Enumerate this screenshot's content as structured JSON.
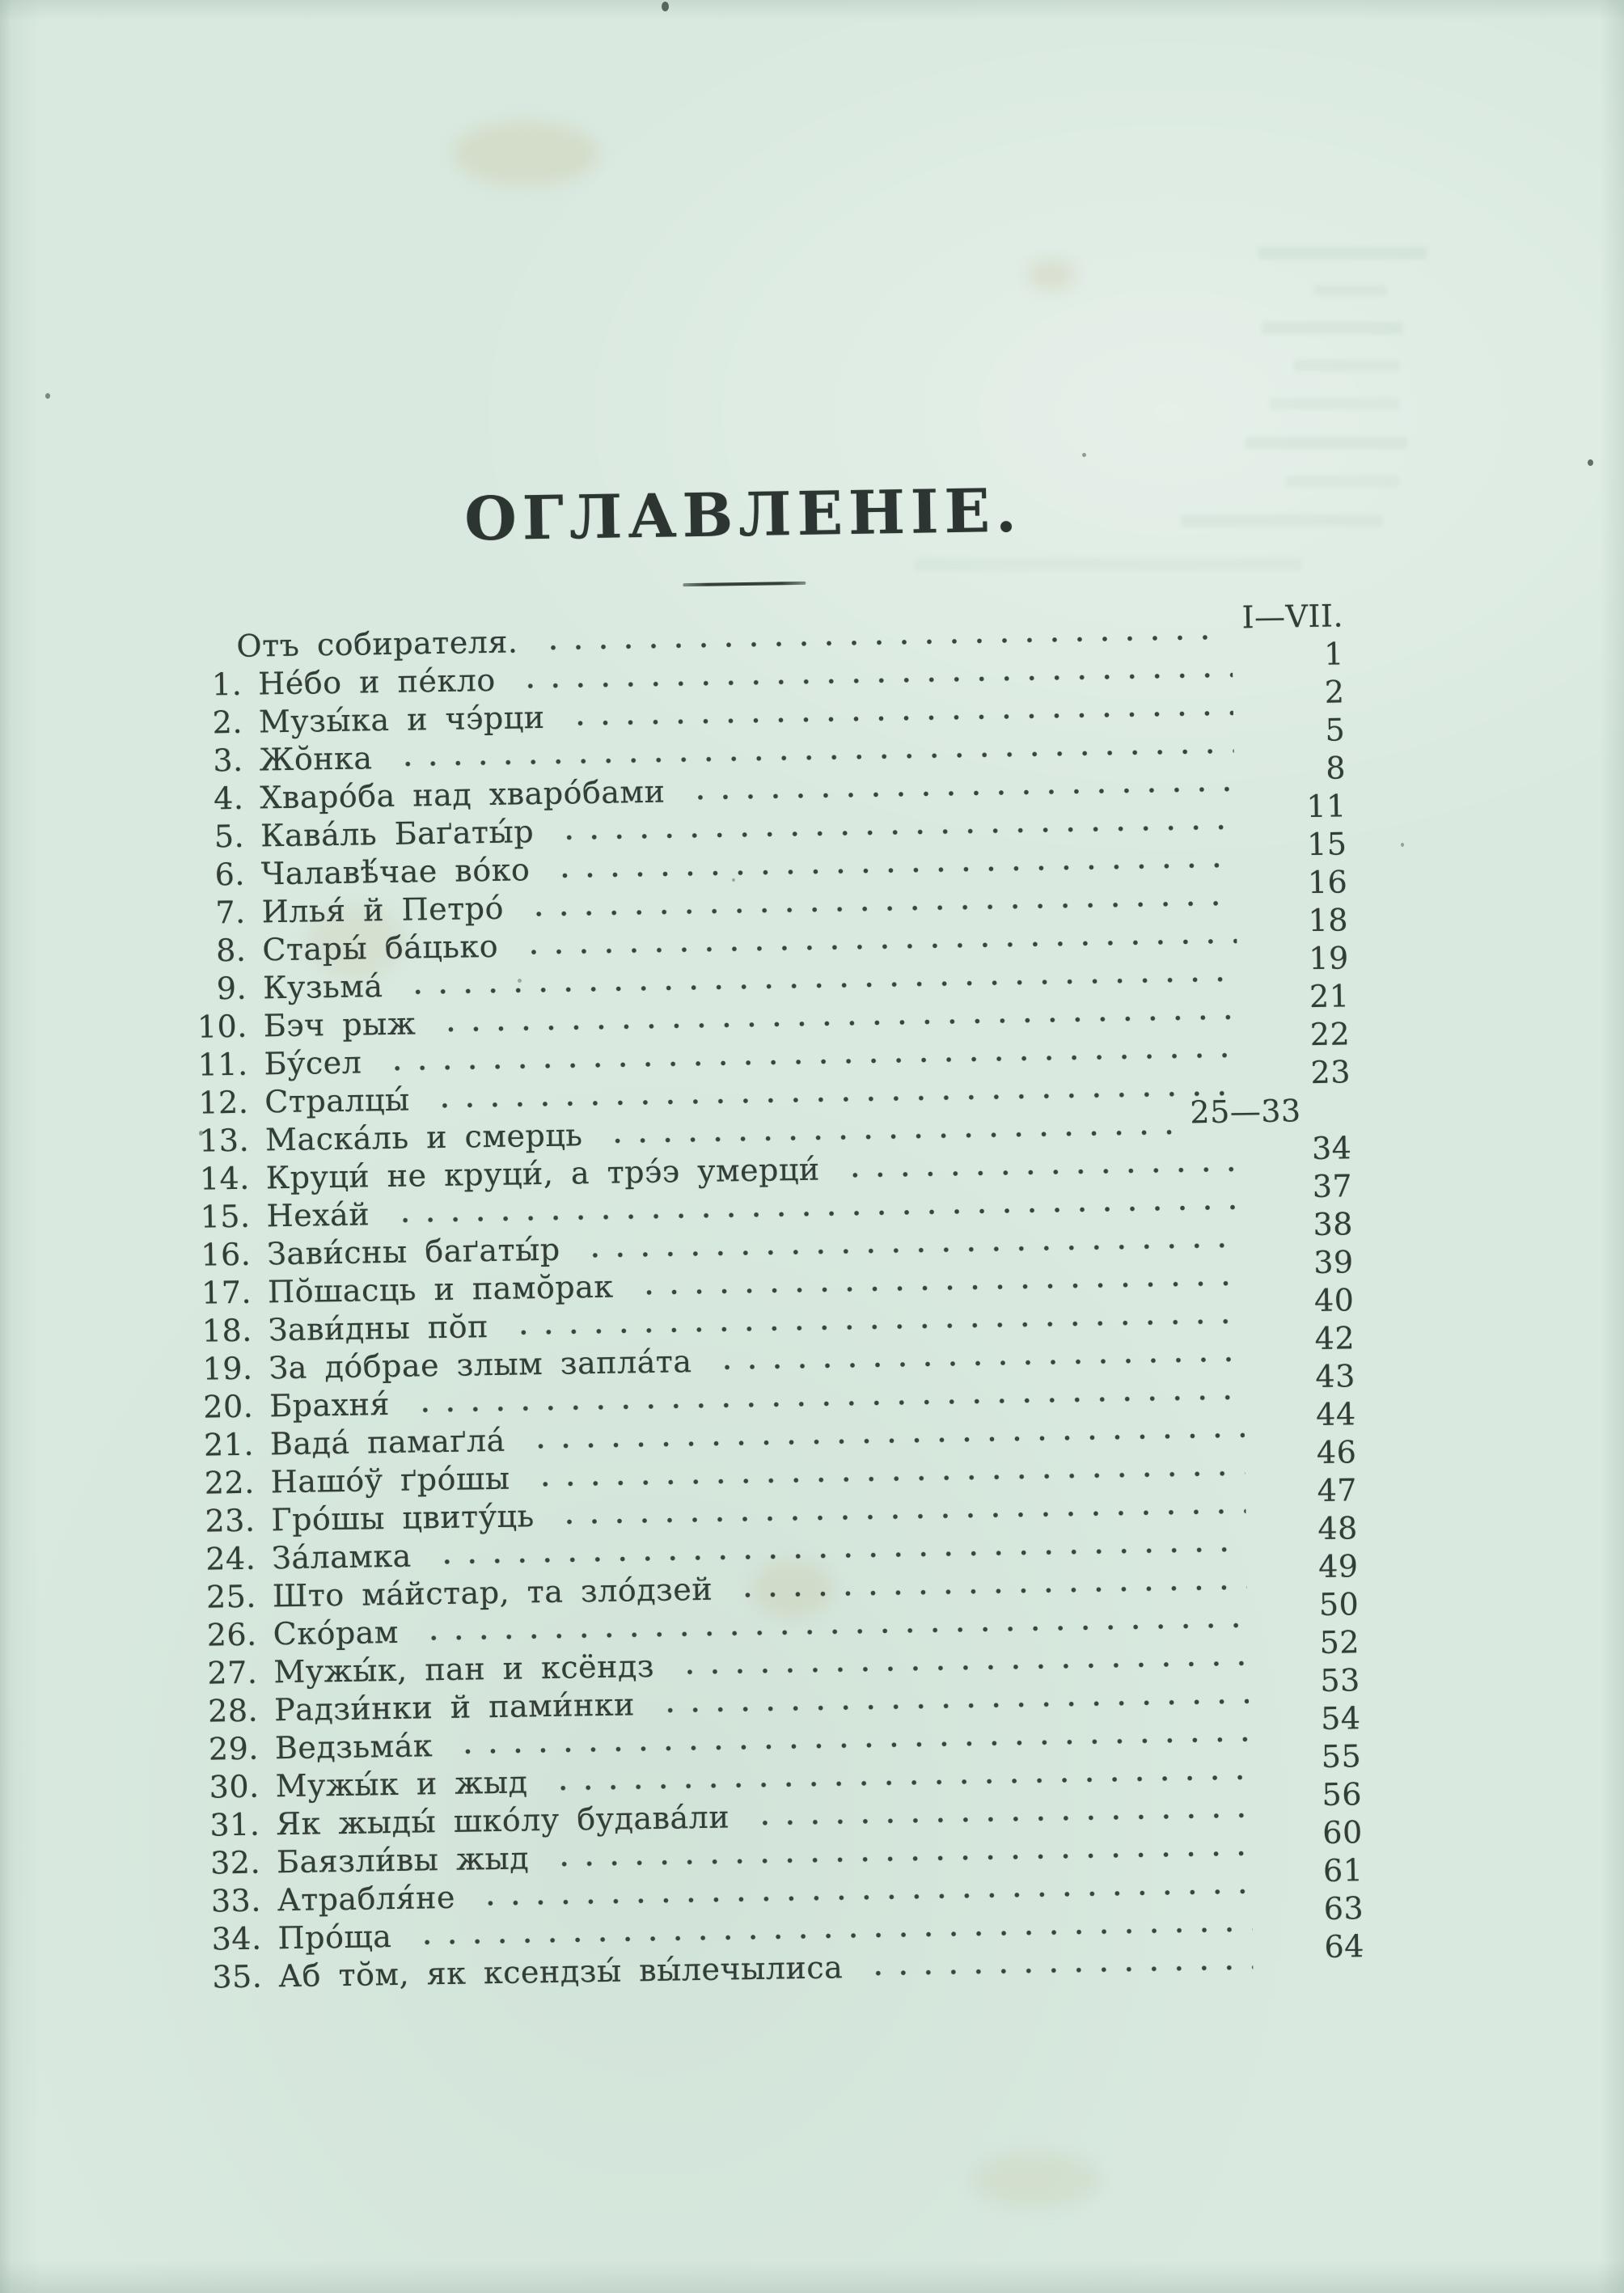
{
  "page": {
    "title": "ОГЛАВЛЕНІЕ.",
    "header": {
      "label": "Отъ собирателя.",
      "pages": "I—VII."
    },
    "entries": [
      {
        "num": "1.",
        "title": "Не́бо и пе́кло",
        "page": "1"
      },
      {
        "num": "2.",
        "title": "Музы́ка и чэ́рци",
        "page": "2"
      },
      {
        "num": "3.",
        "title": "Жо̆нка",
        "page": "5"
      },
      {
        "num": "4.",
        "title": "Хваро́ба над хваро́бами",
        "page": "8"
      },
      {
        "num": "5.",
        "title": "Кава́ль Баґаты́р",
        "page": "11"
      },
      {
        "num": "6.",
        "title": "Чалавѣ́чае во́ко",
        "page": "15"
      },
      {
        "num": "7.",
        "title": "Илья́ й Петро́",
        "page": "16"
      },
      {
        "num": "8.",
        "title": "Стары́ ба́цько",
        "page": "18"
      },
      {
        "num": "9.",
        "title": "Кузьма́",
        "page": "19"
      },
      {
        "num": "10.",
        "title": "Бэч рыж",
        "page": "21"
      },
      {
        "num": "11.",
        "title": "Бу́сел",
        "page": "22"
      },
      {
        "num": "12.",
        "title": "Стралцы́",
        "page": "23"
      },
      {
        "num": "13.",
        "title": "Маска́ль и смерць",
        "page": "25—33"
      },
      {
        "num": "14.",
        "title": "Круци́ не круци́, а трэ́э умерци́",
        "page": "34"
      },
      {
        "num": "15.",
        "title": "Неха́й",
        "page": "37"
      },
      {
        "num": "16.",
        "title": "Зави́сны баґаты́р",
        "page": "38"
      },
      {
        "num": "17.",
        "title": "По̆шасць и памо̆рак",
        "page": "39"
      },
      {
        "num": "18.",
        "title": "Зави́дны по̆п",
        "page": "40"
      },
      {
        "num": "19.",
        "title": "За до́брае злым запла́та",
        "page": "42"
      },
      {
        "num": "20.",
        "title": "Брахня́",
        "page": "43"
      },
      {
        "num": "21.",
        "title": "Вада́ памаґла́",
        "page": "44"
      },
      {
        "num": "22.",
        "title": "Нашо́ў ґро́шы",
        "page": "46"
      },
      {
        "num": "23.",
        "title": "Гро́шы цвиту́ць",
        "page": "47"
      },
      {
        "num": "24.",
        "title": "За́ламка",
        "page": "48"
      },
      {
        "num": "25.",
        "title": "Што ма́йстар, та зло́дзей",
        "page": "49"
      },
      {
        "num": "26.",
        "title": "Ско́рам",
        "page": "50"
      },
      {
        "num": "27.",
        "title": "Мужы́к, пан и ксёндз",
        "page": "52"
      },
      {
        "num": "28.",
        "title": "Радзи́нки й пами́нки",
        "page": "53"
      },
      {
        "num": "29.",
        "title": "Ведзьма́к",
        "page": "54"
      },
      {
        "num": "30.",
        "title": "Мужы́к и жыд",
        "page": "55"
      },
      {
        "num": "31.",
        "title": "Як жыды́ шко́лу будава́ли",
        "page": "56"
      },
      {
        "num": "32.",
        "title": "Баязли́вы жыд",
        "page": "60"
      },
      {
        "num": "33.",
        "title": "Атрабля́не",
        "page": "61"
      },
      {
        "num": "34.",
        "title": "Про́ща",
        "page": "63"
      },
      {
        "num": "35.",
        "title": "Аб то̆м, як ксендзы́ вы́лечылиса",
        "page": "64"
      }
    ]
  }
}
